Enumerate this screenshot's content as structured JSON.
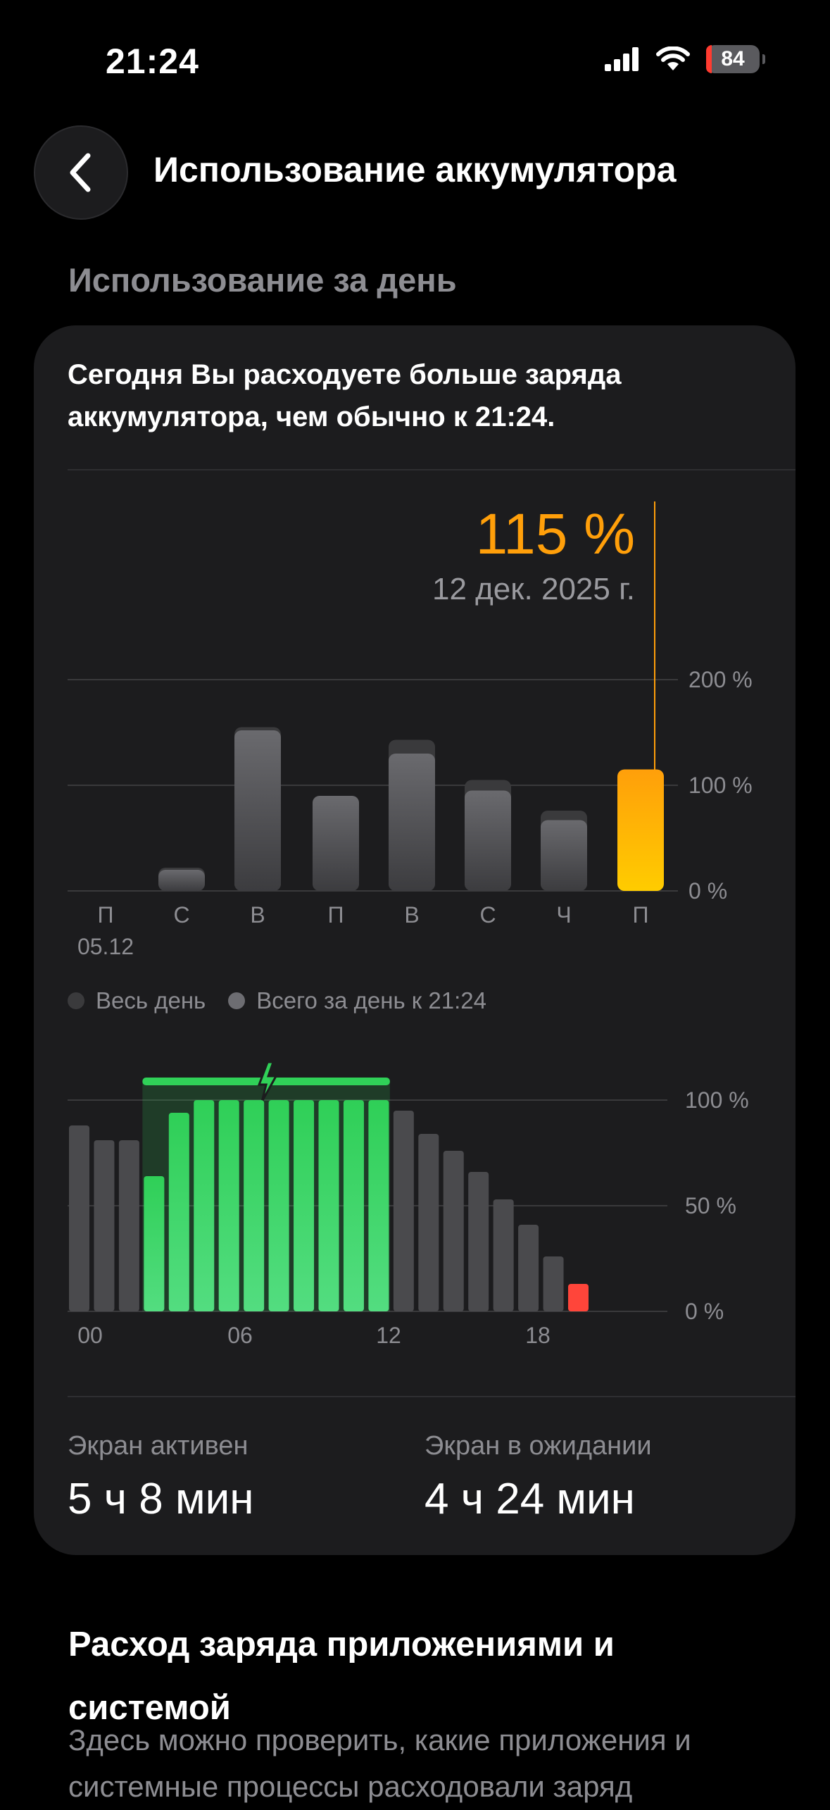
{
  "status_bar": {
    "time": "21:24",
    "battery_level": "84",
    "icons": [
      "signal-icon",
      "wifi-icon",
      "battery-low-charging-icon"
    ]
  },
  "nav": {
    "title": "Использование аккумулятора",
    "back_icon": "chevron-left-icon"
  },
  "section": {
    "title": "Использование за день"
  },
  "card": {
    "message": "Сегодня Вы расходуете больше заряда аккумулятора, чем обычно к 21:24.",
    "readout_value": "115 %",
    "readout_date": "12 дек. 2025 г.",
    "legend": [
      {
        "label": "Весь день"
      },
      {
        "label": "Всего за день к 21:24"
      }
    ],
    "stats": {
      "screen_active_label": "Экран активен",
      "screen_active_value": "5 ч 8 мин",
      "screen_idle_label": "Экран в ожидании",
      "screen_idle_value": "4 ч 24 мин"
    }
  },
  "bottom": {
    "title": "Расход заряда приложениями и системой",
    "description": "Здесь можно проверить, какие приложения и системные процессы расходовали заряд"
  },
  "colors": {
    "accent_orange": "#ff9f0a",
    "bar_yellow": "#ffcc00",
    "green": "#30d158",
    "red": "#ff453a",
    "card_bg": "#1c1c1e"
  },
  "chart_data": [
    {
      "type": "bar",
      "categories": [
        "П",
        "С",
        "В",
        "П",
        "В",
        "С",
        "Ч",
        "П"
      ],
      "category_sublabels": [
        "05.12",
        "",
        "",
        "",
        "",
        "",
        "",
        ""
      ],
      "series": [
        {
          "name": "Весь день",
          "values": [
            0,
            22,
            155,
            90,
            143,
            105,
            76,
            115
          ]
        },
        {
          "name": "Всего за день к 21:24",
          "values": [
            0,
            20,
            152,
            90,
            130,
            95,
            67,
            115
          ]
        }
      ],
      "selected_index": 7,
      "y_ticks": [
        "0 %",
        "100 %",
        "200 %"
      ],
      "ylim": [
        0,
        200
      ]
    },
    {
      "type": "bar",
      "x_ticks": [
        "00",
        "06",
        "12",
        "18"
      ],
      "y_ticks": [
        "0 %",
        "50 %",
        "100 %"
      ],
      "ylim": [
        0,
        100
      ],
      "hours": [
        0,
        1,
        2,
        3,
        4,
        5,
        6,
        7,
        8,
        9,
        10,
        11,
        12,
        13,
        14,
        15,
        16,
        17,
        18,
        19,
        20,
        21
      ],
      "values": [
        88,
        81,
        81,
        64,
        94,
        100,
        100,
        100,
        100,
        100,
        100,
        100,
        100,
        95,
        84,
        76,
        66,
        53,
        41,
        26,
        13,
        0
      ],
      "charging_hours": [
        3,
        4,
        5,
        6,
        7,
        8,
        9,
        10,
        11,
        12
      ],
      "low_battery_hours": [
        20
      ]
    }
  ]
}
